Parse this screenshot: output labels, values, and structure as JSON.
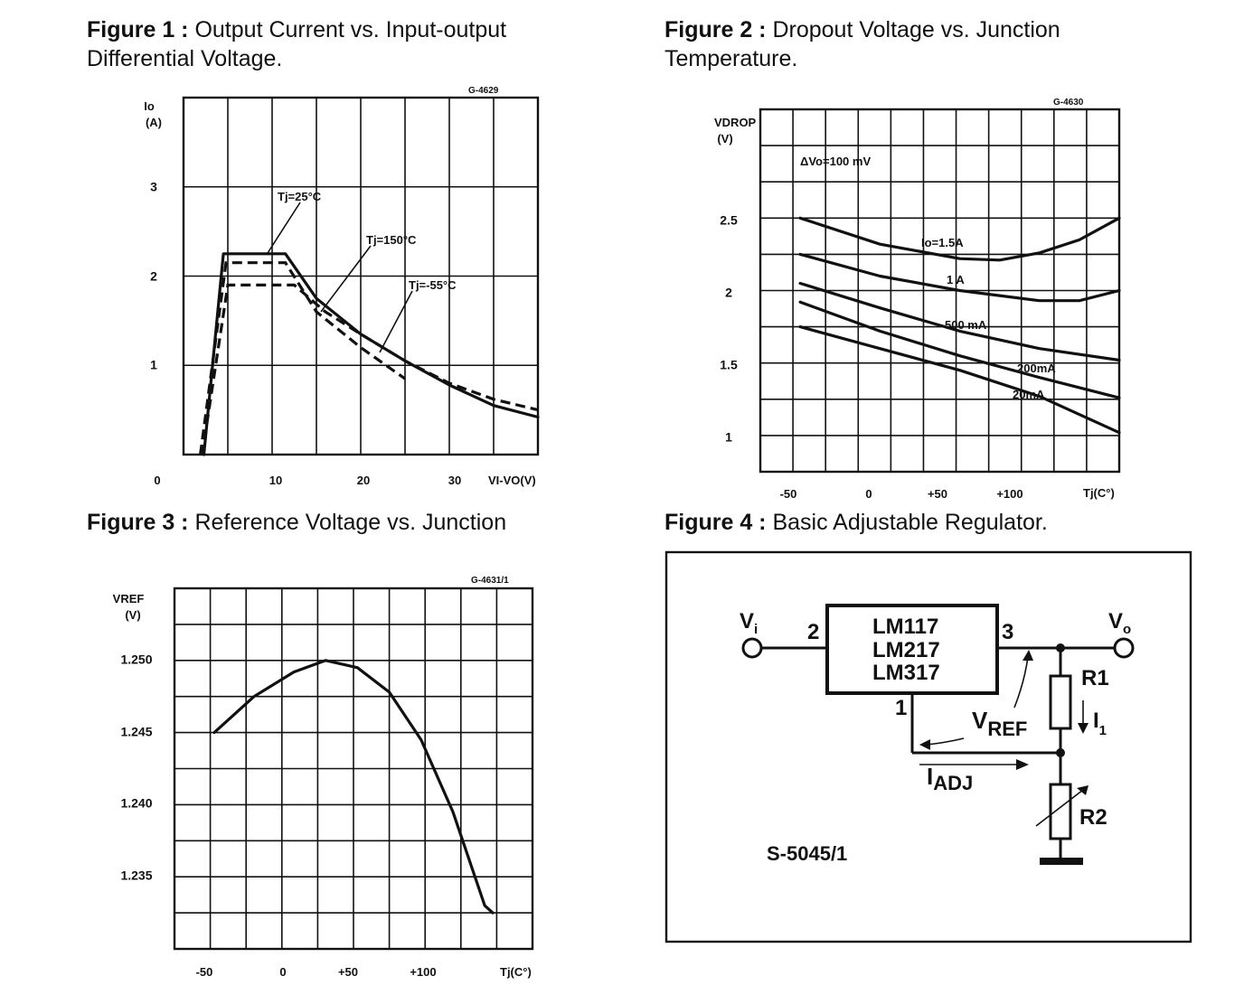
{
  "captions": {
    "fig1": {
      "bold": "Figure 1 :",
      "text": " Output Current vs. Input-output",
      "line2": "Differential Voltage."
    },
    "fig2": {
      "bold": "Figure 2 :",
      "text": " Dropout Voltage vs. Junction",
      "line2": "Temperature."
    },
    "fig3": {
      "bold": "Figure 3 :",
      "text": " Reference Voltage vs. Junction"
    },
    "fig4": {
      "bold": "Figure 4 :",
      "text": " Basic Adjustable Regulator."
    }
  },
  "chart_data": [
    {
      "type": "line",
      "code": "G-4629",
      "ylabel": "Io",
      "yunit": "(A)",
      "xlabel": "VI-VO(V)",
      "xlim": [
        0,
        40
      ],
      "ylim": [
        0,
        4
      ],
      "x_ticks": [
        "0",
        "10",
        "20",
        "30"
      ],
      "y_ticks": [
        "1",
        "2",
        "3"
      ],
      "grid": true,
      "series": [
        {
          "name": "Tj=25°C",
          "style": "solid",
          "points": [
            [
              2.3,
              0
            ],
            [
              4.5,
              2.25
            ],
            [
              11.5,
              2.25
            ],
            [
              15,
              1.75
            ],
            [
              20,
              1.35
            ],
            [
              25,
              1.05
            ],
            [
              30,
              0.78
            ],
            [
              35,
              0.55
            ],
            [
              40,
              0.42
            ]
          ]
        },
        {
          "name": "Tj=150°C",
          "style": "dashed",
          "points": [
            [
              1.9,
              0
            ],
            [
              4.8,
              2.15
            ],
            [
              11.5,
              2.15
            ],
            [
              15,
              1.6
            ],
            [
              20,
              1.2
            ],
            [
              25,
              0.85
            ]
          ]
        },
        {
          "name": "Tj=-55°C",
          "style": "dashed",
          "points": [
            [
              2.1,
              0
            ],
            [
              5,
              1.9
            ],
            [
              12.5,
              1.9
            ],
            [
              16,
              1.6
            ],
            [
              20,
              1.35
            ],
            [
              25,
              1.05
            ],
            [
              30,
              0.8
            ],
            [
              35,
              0.62
            ],
            [
              40,
              0.5
            ]
          ]
        }
      ]
    },
    {
      "type": "line",
      "code": "G-4630",
      "ylabel": "VDROP",
      "yunit": "(V)",
      "xlabel": "Tj(C°)",
      "annotation": "ΔVo=100 mV",
      "xlim": [
        -75,
        150
      ],
      "ylim": [
        0.75,
        3.25
      ],
      "x_ticks": [
        "-50",
        "0",
        "+50",
        "+100"
      ],
      "y_ticks": [
        "1",
        "1.5",
        "2",
        "2.5"
      ],
      "grid": true,
      "series": [
        {
          "name": "Io=1.5A",
          "points": [
            [
              -50,
              2.5
            ],
            [
              0,
              2.32
            ],
            [
              50,
              2.22
            ],
            [
              75,
              2.21
            ],
            [
              100,
              2.26
            ],
            [
              125,
              2.35
            ],
            [
              150,
              2.5
            ]
          ]
        },
        {
          "name": "1 A",
          "points": [
            [
              -50,
              2.25
            ],
            [
              0,
              2.1
            ],
            [
              50,
              2.0
            ],
            [
              100,
              1.93
            ],
            [
              125,
              1.93
            ],
            [
              150,
              2.0
            ]
          ]
        },
        {
          "name": "500 mA",
          "points": [
            [
              -50,
              2.05
            ],
            [
              0,
              1.88
            ],
            [
              50,
              1.72
            ],
            [
              100,
              1.6
            ],
            [
              150,
              1.52
            ]
          ]
        },
        {
          "name": "200mA",
          "points": [
            [
              -50,
              1.92
            ],
            [
              0,
              1.72
            ],
            [
              50,
              1.55
            ],
            [
              100,
              1.4
            ],
            [
              150,
              1.26
            ]
          ]
        },
        {
          "name": "20mA",
          "points": [
            [
              -50,
              1.75
            ],
            [
              0,
              1.6
            ],
            [
              50,
              1.45
            ],
            [
              100,
              1.27
            ],
            [
              150,
              1.02
            ]
          ]
        }
      ]
    },
    {
      "type": "line",
      "code": "G-4631/1",
      "ylabel": "VREF",
      "yunit": "(V)",
      "xlabel": "Tj(C°)",
      "xlim": [
        -75,
        150
      ],
      "ylim": [
        1.23,
        1.255
      ],
      "x_ticks": [
        "-50",
        "0",
        "+50",
        "+100"
      ],
      "y_ticks": [
        "1.235",
        "1.240",
        "1.245",
        "1.250"
      ],
      "grid": true,
      "series": [
        {
          "name": "",
          "points": [
            [
              -50,
              1.245
            ],
            [
              -25,
              1.2475
            ],
            [
              0,
              1.2492
            ],
            [
              20,
              1.25
            ],
            [
              40,
              1.2495
            ],
            [
              60,
              1.2478
            ],
            [
              80,
              1.2445
            ],
            [
              100,
              1.2395
            ],
            [
              120,
              1.233
            ],
            [
              125,
              1.2325
            ]
          ]
        }
      ]
    }
  ],
  "circuit": {
    "chip_lines": [
      "LM117",
      "LM217",
      "LM317"
    ],
    "vi": "V",
    "vi_sub": "i",
    "vo": "V",
    "vo_sub": "o",
    "pin_in": "2",
    "pin_out": "3",
    "pin_adj": "1",
    "vref": "V",
    "vref_sub": "REF",
    "iadj": "I",
    "iadj_sub": "ADJ",
    "r1": "R1",
    "i1": "I",
    "i1_sub": "1",
    "r2": "R2",
    "code": "S-5045/1"
  }
}
